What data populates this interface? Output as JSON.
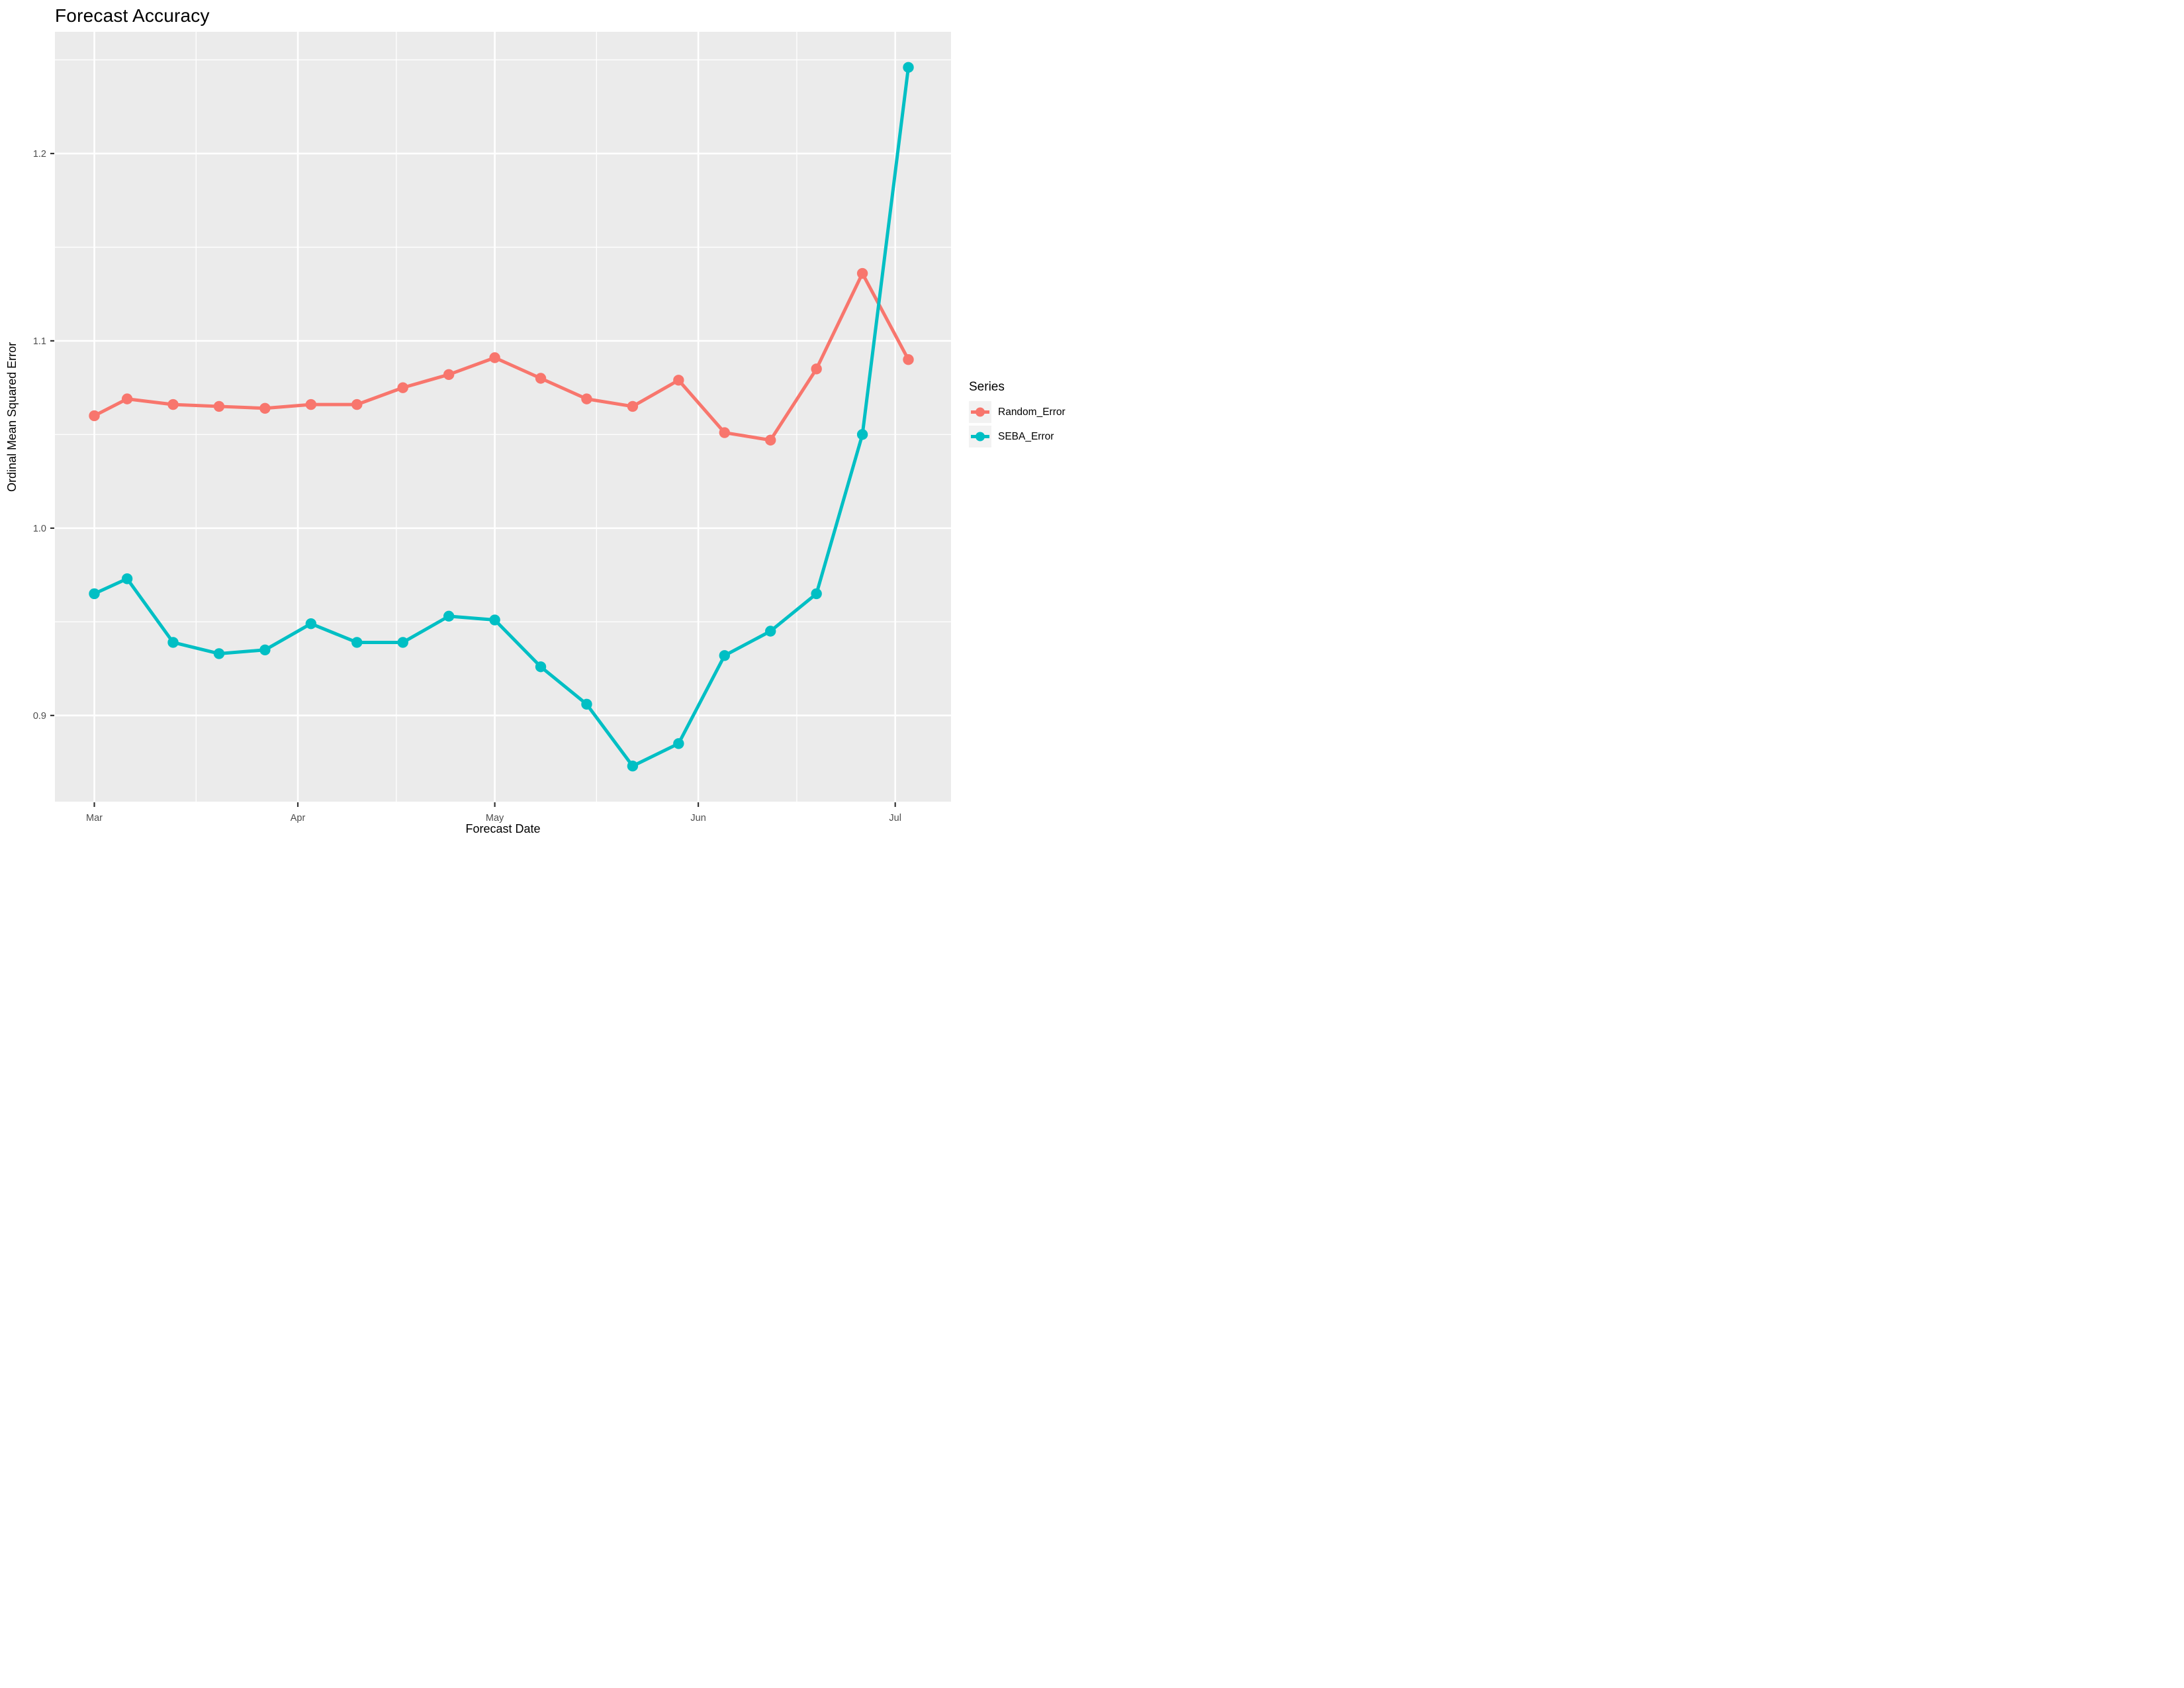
{
  "page": {
    "title": "Forecast Accuracy"
  },
  "chart_data": {
    "type": "line",
    "title": "Forecast Accuracy",
    "xlabel": "Forecast Date",
    "ylabel": "Ordinal Mean Squared Error",
    "legend_title": "Series",
    "legend_position": "right",
    "grid": "on",
    "panel_bg": "#EBEBEB",
    "grid_color": "#FFFFFF",
    "tick_label_color": "#4D4D4D",
    "tick_mark_color": "#333333",
    "legend_key_bg": "#F2F2F2",
    "x": [
      "Mar 01",
      "Mar 06",
      "Mar 13",
      "Mar 20",
      "Mar 27",
      "Apr 03",
      "Apr 10",
      "Apr 17",
      "Apr 24",
      "May 01",
      "May 08",
      "May 15",
      "May 22",
      "May 29",
      "Jun 05",
      "Jun 12",
      "Jun 19",
      "Jun 26",
      "Jul 03"
    ],
    "x_days": [
      0,
      5,
      12,
      19,
      26,
      33,
      40,
      47,
      54,
      61,
      68,
      75,
      82,
      89,
      96,
      103,
      110,
      117,
      124
    ],
    "series": [
      {
        "name": "Random_Error",
        "color": "#F8766D",
        "values": [
          1.06,
          1.069,
          1.066,
          1.065,
          1.064,
          1.066,
          1.066,
          1.075,
          1.082,
          1.091,
          1.08,
          1.069,
          1.065,
          1.079,
          1.051,
          1.047,
          1.085,
          1.136,
          1.09
        ]
      },
      {
        "name": "SEBA_Error",
        "color": "#00BFC4",
        "values": [
          0.965,
          0.973,
          0.939,
          0.933,
          0.935,
          0.949,
          0.939,
          0.939,
          0.953,
          0.951,
          0.926,
          0.906,
          0.873,
          0.885,
          0.932,
          0.945,
          0.965,
          1.05,
          1.246
        ]
      }
    ],
    "x_ticks": [
      {
        "day": 0,
        "label": "Mar"
      },
      {
        "day": 31,
        "label": "Apr"
      },
      {
        "day": 61,
        "label": "May"
      },
      {
        "day": 92,
        "label": "Jun"
      },
      {
        "day": 122,
        "label": "Jul"
      }
    ],
    "x_minor_days": [
      15.5,
      46,
      76.5,
      107
    ],
    "y_ticks": [
      {
        "value": 0.9,
        "label": "0.9"
      },
      {
        "value": 1.0,
        "label": "1.0"
      },
      {
        "value": 1.1,
        "label": "1.1"
      },
      {
        "value": 1.2,
        "label": "1.2"
      }
    ],
    "y_minor": [
      0.85,
      0.95,
      1.05,
      1.15,
      1.25
    ],
    "xlim_days": [
      -6,
      130.5
    ],
    "ylim": [
      0.854,
      1.265
    ]
  }
}
